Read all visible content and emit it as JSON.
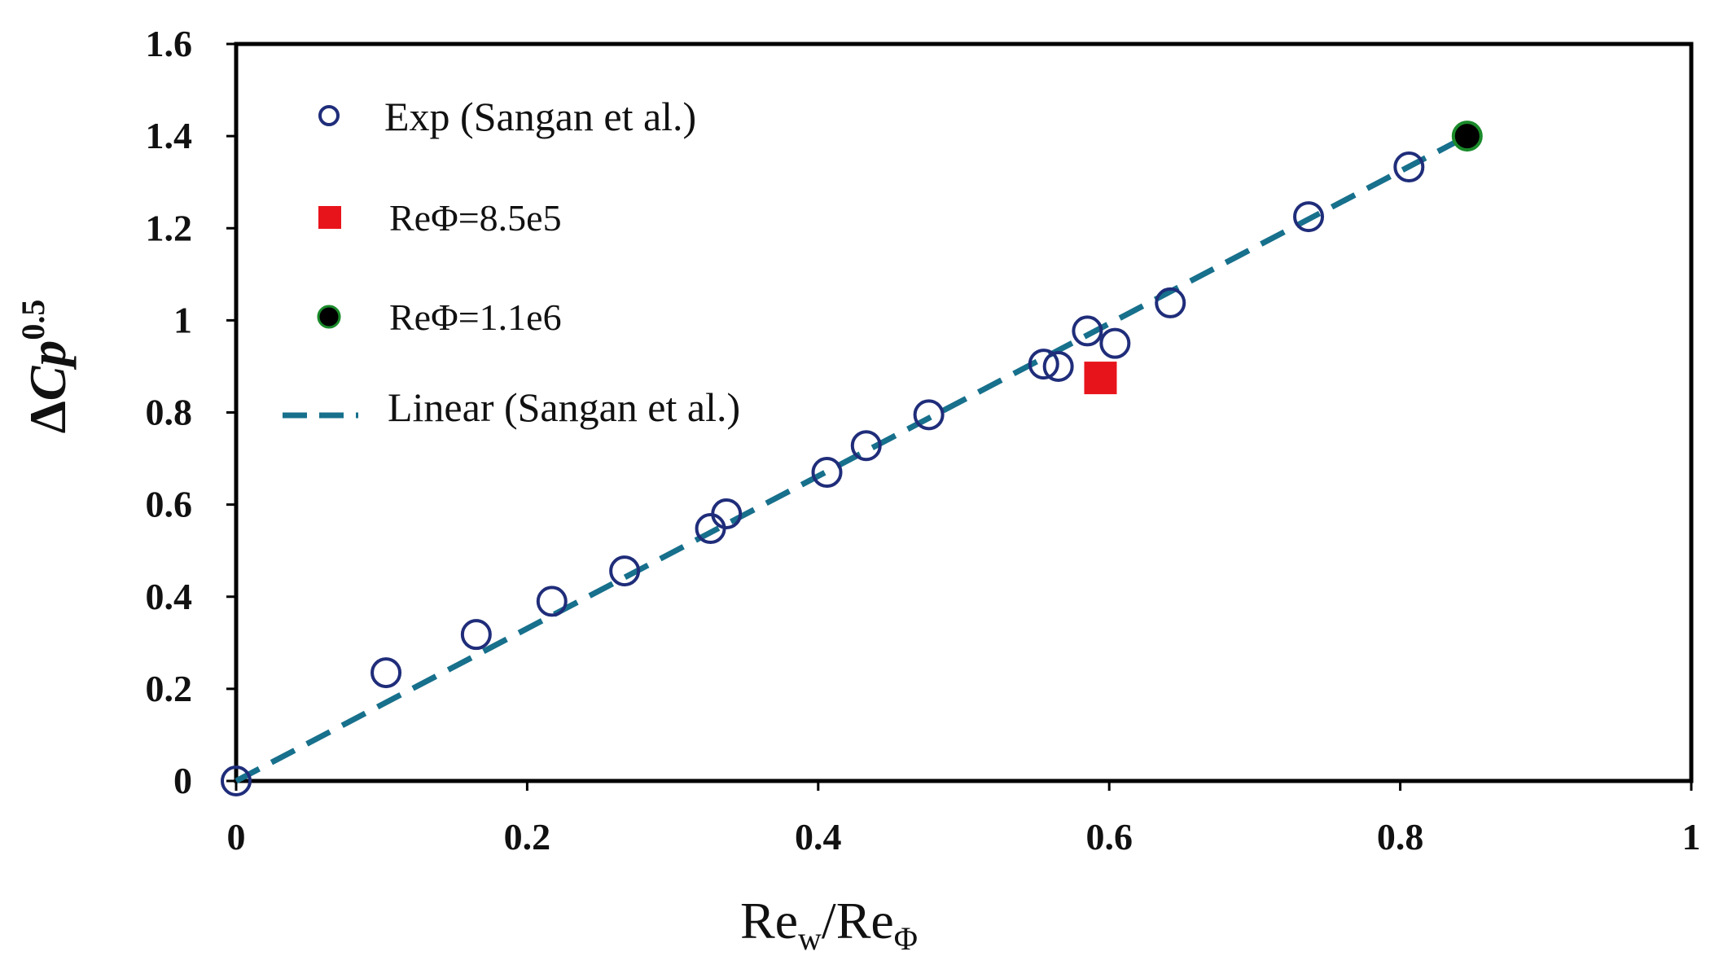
{
  "chart_data": {
    "type": "scatter",
    "xlim": [
      0,
      1
    ],
    "ylim": [
      0,
      1.6
    ],
    "xticks": [
      "0",
      "0.2",
      "0.4",
      "0.6",
      "0.8",
      "1"
    ],
    "yticks": [
      "0",
      "0.2",
      "0.4",
      "0.6",
      "0.8",
      "1",
      "1.2",
      "1.4",
      "1.6"
    ],
    "xlabel": {
      "base": "Re",
      "sub1": "w",
      "mid": "/Re",
      "sub2": "Φ"
    },
    "ylabel": {
      "prefix": "Δ",
      "italic": "Cp",
      "sup": "0.5"
    },
    "grid": false,
    "legend_position": "top-left",
    "series": [
      {
        "name": "Exp (Sangan et al.)",
        "marker": "open-circle",
        "color": "#1f2d7a",
        "x": [
          0.0,
          0.103,
          0.165,
          0.217,
          0.267,
          0.326,
          0.337,
          0.406,
          0.433,
          0.476,
          0.555,
          0.565,
          0.585,
          0.604,
          0.642,
          0.737,
          0.806
        ],
        "y": [
          0.0,
          0.235,
          0.318,
          0.39,
          0.456,
          0.548,
          0.58,
          0.67,
          0.728,
          0.795,
          0.905,
          0.9,
          0.977,
          0.95,
          1.038,
          1.225,
          1.333
        ]
      },
      {
        "name": "ReΦ=8.5e5",
        "marker": "filled-square",
        "color": "#e8141b",
        "x": [
          0.594
        ],
        "y": [
          0.875
        ]
      },
      {
        "name": "ReΦ=1.1e6",
        "marker": "filled-circle",
        "color": "#000000",
        "edge_color": "#1a8a2a",
        "x": [
          0.846
        ],
        "y": [
          1.4
        ]
      },
      {
        "name": "Linear (Sangan et al.)",
        "line_style": "dashed",
        "color": "#17708c",
        "x": [
          0.0,
          0.846
        ],
        "y": [
          0.0,
          1.4
        ]
      }
    ]
  }
}
